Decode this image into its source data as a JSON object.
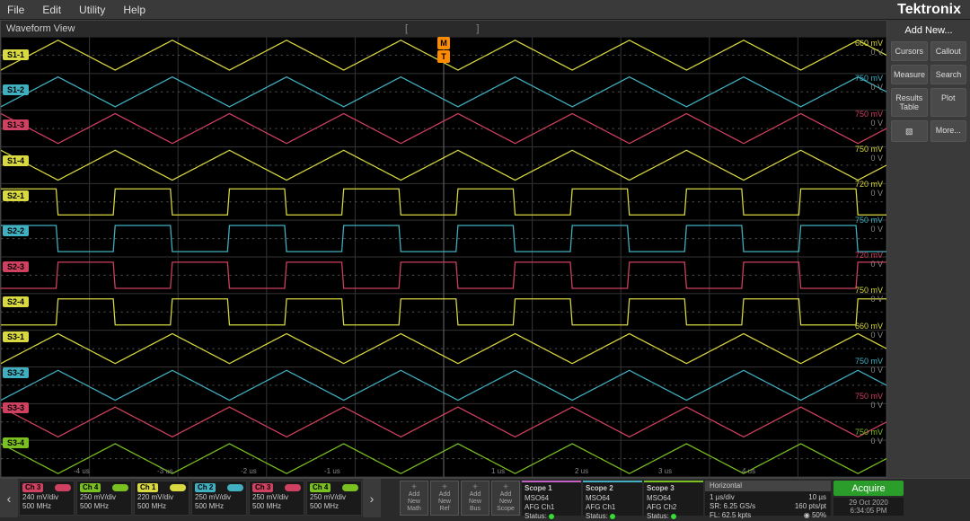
{
  "menu": {
    "file": "File",
    "edit": "Edit",
    "utility": "Utility",
    "help": "Help"
  },
  "brand": "Tektronix",
  "waveform_header": {
    "title": "Waveform View"
  },
  "trigger": {
    "m": "M",
    "t": "T"
  },
  "right_panel": {
    "add_new": "Add New...",
    "cursors": "Cursors",
    "callout": "Callout",
    "measure": "Measure",
    "search": "Search",
    "results_table": "Results Table",
    "plot": "Plot",
    "more": "More..."
  },
  "channels_bottom": [
    {
      "label": "Ch 3",
      "ind_color": "#d04060",
      "volt": "240 mV/div",
      "bw": "500 MHz",
      "badge_bg": "#d04060"
    },
    {
      "label": "Ch 4",
      "ind_color": "#7ac020",
      "volt": "250 mV/div",
      "bw": "500 MHz",
      "badge_bg": "#7ac020"
    },
    {
      "label": "Ch 1",
      "ind_color": "#d8d840",
      "volt": "220 mV/div",
      "bw": "500 MHz",
      "badge_bg": "#d8d840"
    },
    {
      "label": "Ch 2",
      "ind_color": "#40b0c0",
      "volt": "250 mV/div",
      "bw": "500 MHz",
      "badge_bg": "#40b0c0"
    },
    {
      "label": "Ch 3",
      "ind_color": "#d04060",
      "volt": "250 mV/div",
      "bw": "500 MHz",
      "badge_bg": "#d04060"
    },
    {
      "label": "Ch 4",
      "ind_color": "#7ac020",
      "volt": "250 mV/div",
      "bw": "500 MHz",
      "badge_bg": "#7ac020"
    }
  ],
  "add_tiles": [
    {
      "l1": "Add",
      "l2": "New",
      "l3": "Math"
    },
    {
      "l1": "Add",
      "l2": "New",
      "l3": "Ref"
    },
    {
      "l1": "Add",
      "l2": "New",
      "l3": "Bus"
    },
    {
      "l1": "Add",
      "l2": "New",
      "l3": "Scope"
    }
  ],
  "scopes": [
    {
      "title": "Scope 1",
      "model": "MSO64",
      "afg": "AFG Ch1",
      "status": "Status:",
      "border": "#c060c0"
    },
    {
      "title": "Scope 2",
      "model": "MSO64",
      "afg": "AFG Ch1",
      "status": "Status:",
      "border": "#40b0c0"
    },
    {
      "title": "Scope 3",
      "model": "MSO64",
      "afg": "AFG Ch2",
      "status": "Status:",
      "border": "#7ac020"
    }
  ],
  "horizontal": {
    "title": "Horizontal",
    "time": "1 µs/div",
    "pts": "10 µs",
    "sr": "SR: 6.25 GS/s",
    "rl": "160 pts/pt",
    "fl": "FL: 62.5 kpts",
    "pct": "◉ 50%"
  },
  "acquire": "Acquire",
  "date": {
    "d": "29 Oct 2020",
    "t": "6:34:05 PM"
  },
  "x_ticks": [
    "-4 us",
    "-3 us",
    "-2 us",
    "-1 us",
    "",
    "1 us",
    "2 us",
    "3 us",
    "4 us"
  ],
  "waveforms": {
    "view_width": 930,
    "view_height": 472,
    "grid_color": "#333333",
    "dotted_color": "#555555",
    "grid_cols": 10,
    "grid_rows": 12,
    "traces": [
      {
        "badge": "S1-1",
        "color": "#d8d840",
        "type": "triangle",
        "period": 120,
        "amp": 16,
        "phase": 0,
        "label": "660 mV"
      },
      {
        "badge": "S1-2",
        "color": "#40b0c0",
        "type": "triangle",
        "period": 120,
        "amp": 16,
        "phase": 0,
        "label": "750 mV"
      },
      {
        "badge": "S1-3",
        "color": "#d04060",
        "type": "triangle",
        "period": 120,
        "amp": 16,
        "phase": 60,
        "label": "750 mV"
      },
      {
        "badge": "S1-4",
        "color": "#d8d840",
        "type": "triangle",
        "period": 120,
        "amp": 16,
        "phase": 60,
        "label": "750 mV"
      },
      {
        "badge": "S2-1",
        "color": "#d8d840",
        "type": "square",
        "period": 120,
        "amp": 14,
        "phase": 0,
        "label": "720 mV"
      },
      {
        "badge": "S2-2",
        "color": "#40b0c0",
        "type": "square",
        "period": 120,
        "amp": 14,
        "phase": 0,
        "label": "750 mV"
      },
      {
        "badge": "S2-3",
        "color": "#d04060",
        "type": "square",
        "period": 120,
        "amp": 14,
        "phase": 60,
        "label": "720 mV"
      },
      {
        "badge": "S2-4",
        "color": "#d8d840",
        "type": "square",
        "period": 120,
        "amp": 14,
        "phase": 60,
        "label": "750 mV"
      },
      {
        "badge": "S3-1",
        "color": "#d8d840",
        "type": "triangle",
        "period": 120,
        "amp": 16,
        "phase": 0,
        "label": "660 mV"
      },
      {
        "badge": "S3-2",
        "color": "#40b0c0",
        "type": "triangle",
        "period": 120,
        "amp": 16,
        "phase": 0,
        "label": "750 mV"
      },
      {
        "badge": "S3-3",
        "color": "#d04060",
        "type": "triangle",
        "period": 120,
        "amp": 16,
        "phase": 60,
        "label": "750 mV"
      },
      {
        "badge": "S3-4",
        "color": "#7ac020",
        "type": "triangle",
        "period": 120,
        "amp": 16,
        "phase": 60,
        "label": "750 mV"
      }
    ]
  }
}
